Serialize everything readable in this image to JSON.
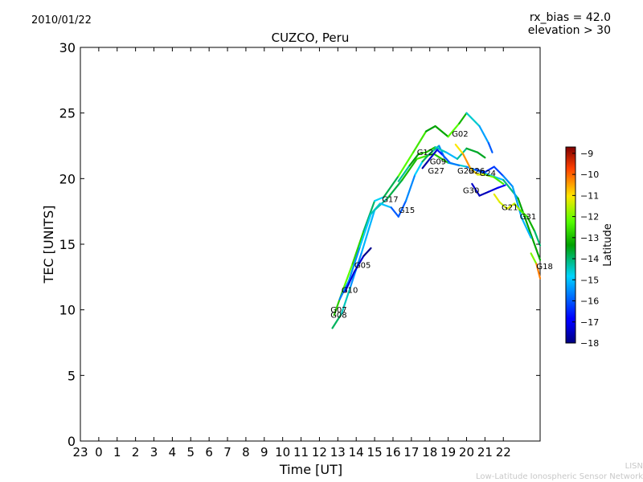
{
  "header": {
    "date": "2010/01/22",
    "rx_bias": "rx_bias = 42.0",
    "elevation": "elevation > 30"
  },
  "footer": {
    "org_short": "LISN",
    "org_full": "Low-Latitude Ionospheric Sensor Network"
  },
  "colorbar": {
    "label": "Latitude",
    "min": -18,
    "max": -8.7,
    "ticks": [
      "-9",
      "-10",
      "-11",
      "-12",
      "-13",
      "-14",
      "-15",
      "-16",
      "-17",
      "-18"
    ]
  },
  "chart_data": {
    "type": "scatter",
    "title": "CUZCO, Peru",
    "xlabel": "Time [UT]",
    "ylabel": "TEC [UNITS]",
    "xlim": [
      -1,
      24
    ],
    "ylim": [
      0,
      30
    ],
    "x_tick_labels": [
      "23",
      "0",
      "1",
      "2",
      "3",
      "4",
      "5",
      "6",
      "7",
      "8",
      "9",
      "10",
      "11",
      "12",
      "13",
      "14",
      "15",
      "16",
      "17",
      "18",
      "19",
      "20",
      "21",
      "22"
    ],
    "y_ticks": [
      0,
      5,
      10,
      15,
      20,
      25,
      30
    ],
    "grid": false,
    "series": [
      {
        "name": "G10",
        "points": [
          [
            12.7,
            8.6,
            -14.2
          ],
          [
            13.2,
            9.7,
            -13.6
          ],
          [
            13.7,
            11.8,
            -15.3
          ],
          [
            14.3,
            14.4,
            -15.7
          ],
          [
            15.0,
            17.6,
            -14.6
          ],
          [
            15.7,
            18.5,
            -14.0
          ],
          [
            16.5,
            19.9,
            -13.5
          ],
          [
            17.3,
            21.5,
            -12.6
          ],
          [
            18.2,
            21.9,
            -12.4
          ],
          [
            19.0,
            21.2,
            -13.4
          ],
          [
            20.0,
            20.9,
            -15.8
          ],
          [
            21.0,
            20.4,
            -15.5
          ],
          [
            22.0,
            19.9,
            -14.6
          ],
          [
            22.8,
            18.5,
            -13.6
          ],
          [
            24.0,
            13.8,
            -13.0
          ]
        ]
      },
      {
        "name": "G02",
        "points": [
          [
            12.8,
            9.6,
            -13.1
          ],
          [
            13.3,
            11.6,
            -12.5
          ],
          [
            13.8,
            13.5,
            -11.9
          ],
          [
            14.4,
            16.0,
            -13.6
          ],
          [
            15.0,
            18.3,
            -14.3
          ],
          [
            15.5,
            18.6,
            -15.3
          ],
          [
            16.3,
            20.2,
            -12.3
          ],
          [
            17.1,
            22.0,
            -12.2
          ],
          [
            17.8,
            23.6,
            -12.8
          ],
          [
            18.3,
            24.0,
            -14.0
          ],
          [
            19.0,
            23.2,
            -12.6
          ],
          [
            19.6,
            24.2,
            -11.9
          ],
          [
            20.0,
            25.0,
            -14.3
          ],
          [
            20.7,
            24.0,
            -14.8
          ],
          [
            21.2,
            22.7,
            -15.9
          ],
          [
            21.4,
            22.0,
            -16.2
          ]
        ]
      },
      {
        "name": "G17",
        "points": [
          [
            13.1,
            10.8,
            -15.5
          ],
          [
            13.6,
            12.2,
            -15.9
          ],
          [
            14.2,
            14.8,
            -15.2
          ],
          [
            14.8,
            17.3,
            -14.7
          ],
          [
            15.3,
            18.1,
            -14.2
          ],
          [
            15.9,
            17.8,
            -15.8
          ],
          [
            16.3,
            17.1,
            -16.3
          ],
          [
            16.7,
            18.3,
            -15.8
          ],
          [
            17.2,
            20.3,
            -15.4
          ],
          [
            17.6,
            21.3,
            -14.3
          ],
          [
            18.0,
            21.9,
            -13.4
          ],
          [
            18.5,
            22.5,
            -15.0
          ],
          [
            18.8,
            21.6,
            -16.2
          ]
        ]
      },
      {
        "name": "G05",
        "points": [
          [
            13.4,
            11.4,
            -17.6
          ],
          [
            13.9,
            12.9,
            -16.9
          ],
          [
            14.4,
            14.1,
            -17.8
          ],
          [
            14.8,
            14.7,
            -18.0
          ]
        ]
      },
      {
        "name": "G12",
        "points": [
          [
            16.3,
            19.8,
            -14.6
          ],
          [
            16.9,
            21.0,
            -13.9
          ],
          [
            17.4,
            21.9,
            -12.9
          ],
          [
            17.8,
            22.0,
            -12.7
          ],
          [
            18.3,
            22.4,
            -13.2
          ],
          [
            18.9,
            22.0,
            -15.7
          ],
          [
            19.5,
            21.5,
            -14.6
          ],
          [
            20.0,
            22.3,
            -13.8
          ],
          [
            20.6,
            22.0,
            -13.4
          ],
          [
            21.0,
            21.6,
            -13.7
          ]
        ]
      },
      {
        "name": "G09",
        "points": [
          [
            17.6,
            20.8,
            -17.8
          ],
          [
            18.0,
            21.5,
            -17.6
          ],
          [
            18.4,
            22.2,
            -17.2
          ],
          [
            18.7,
            21.8,
            -16.3
          ],
          [
            19.1,
            21.2,
            -16.0
          ],
          [
            19.6,
            21.0,
            -15.5
          ]
        ]
      },
      {
        "name": "G29",
        "points": [
          [
            19.4,
            22.6,
            -11.9
          ],
          [
            19.8,
            21.9,
            -10.2
          ],
          [
            20.2,
            20.8,
            -10.6
          ],
          [
            20.6,
            20.3,
            -11.1
          ],
          [
            21.0,
            20.3,
            -11.6
          ],
          [
            21.5,
            20.1,
            -12.3
          ],
          [
            22.0,
            19.6,
            -12.6
          ]
        ]
      },
      {
        "name": "G30",
        "points": [
          [
            20.3,
            19.6,
            -17.1
          ],
          [
            20.7,
            18.7,
            -17.7
          ],
          [
            21.2,
            19.0,
            -17.4
          ],
          [
            21.7,
            19.3,
            -17.2
          ],
          [
            22.1,
            19.5,
            -16.8
          ]
        ]
      },
      {
        "name": "G24",
        "points": [
          [
            20.5,
            20.7,
            -16.2
          ],
          [
            21.0,
            20.5,
            -16.4
          ],
          [
            21.5,
            20.9,
            -16.6
          ],
          [
            22.0,
            20.2,
            -16.0
          ],
          [
            22.5,
            19.4,
            -15.2
          ],
          [
            23.0,
            17.0,
            -15.5
          ],
          [
            23.5,
            15.5,
            -14.8
          ]
        ]
      },
      {
        "name": "G21",
        "points": [
          [
            21.5,
            18.8,
            -10.9
          ],
          [
            21.8,
            18.2,
            -11.5
          ],
          [
            22.2,
            17.7,
            -11.2
          ],
          [
            22.6,
            18.1,
            -11.3
          ],
          [
            22.9,
            17.6,
            -12.0
          ],
          [
            23.3,
            17.1,
            -12.8
          ],
          [
            23.7,
            16.0,
            -13.5
          ],
          [
            24.0,
            14.9,
            -14.5
          ]
        ]
      },
      {
        "name": "G18",
        "points": [
          [
            23.5,
            14.3,
            -12.9
          ],
          [
            23.8,
            13.5,
            -11.0
          ],
          [
            24.0,
            12.4,
            -9.4
          ]
        ]
      }
    ],
    "labels": [
      {
        "text": "G02",
        "x": 19.2,
        "y": 23.2
      },
      {
        "text": "G12",
        "x": 17.3,
        "y": 21.8
      },
      {
        "text": "G09",
        "x": 18.0,
        "y": 21.1
      },
      {
        "text": "G27",
        "x": 17.9,
        "y": 20.4
      },
      {
        "text": "G29",
        "x": 19.5,
        "y": 20.4
      },
      {
        "text": "G26",
        "x": 20.1,
        "y": 20.4
      },
      {
        "text": "G24",
        "x": 20.7,
        "y": 20.2
      },
      {
        "text": "G30",
        "x": 19.8,
        "y": 18.9
      },
      {
        "text": "G17",
        "x": 15.4,
        "y": 18.2
      },
      {
        "text": "G15",
        "x": 16.3,
        "y": 17.4
      },
      {
        "text": "G21",
        "x": 21.9,
        "y": 17.6
      },
      {
        "text": "G31",
        "x": 22.9,
        "y": 16.9
      },
      {
        "text": "G05",
        "x": 13.9,
        "y": 13.2
      },
      {
        "text": "G18",
        "x": 23.8,
        "y": 13.1
      },
      {
        "text": "G10",
        "x": 13.2,
        "y": 11.3
      },
      {
        "text": "G07",
        "x": 12.6,
        "y": 9.8
      },
      {
        "text": "G08",
        "x": 12.6,
        "y": 9.4
      }
    ]
  }
}
